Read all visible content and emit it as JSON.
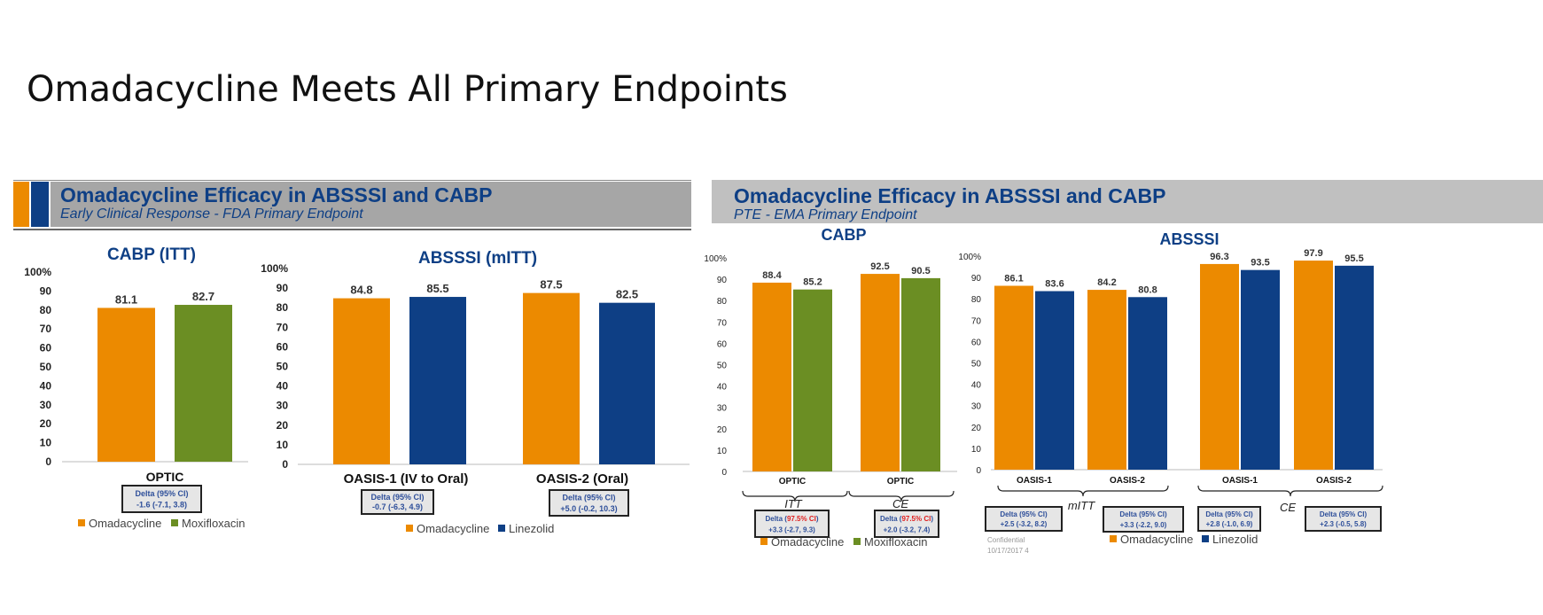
{
  "slide": {
    "title": "Omadacycline Meets All Primary Endpoints"
  },
  "colors": {
    "orange": "#ec8a00",
    "green": "#6b8e23",
    "navy": "#0e3f85",
    "header_gray": "#a6a6a6",
    "header_light": "#c0c0c0"
  },
  "left_panel": {
    "header": {
      "title": "Omadacycline Efficacy in ABSSSI and CABP",
      "subtitle": "Early Clinical Response - FDA Primary Endpoint"
    },
    "legend_cabp": [
      "Omadacycline",
      "Moxifloxacin"
    ],
    "legend_absssi": [
      "Omadacycline",
      "Linezolid"
    ]
  },
  "right_panel": {
    "header": {
      "title": "Omadacycline Efficacy in ABSSSI and CABP",
      "subtitle": "PTE - EMA Primary Endpoint"
    },
    "legend_cabp": [
      "Omadacycline",
      "Moxifloxacin"
    ],
    "legend_absssi": [
      "Omadacycline",
      "Linezolid"
    ],
    "footer": [
      "Confidential",
      "10/17/2017   4"
    ]
  },
  "chart_data": [
    {
      "type": "bar",
      "title": "CABP (ITT)",
      "ylim": [
        0,
        100
      ],
      "yticks": [
        "0",
        "10",
        "20",
        "30",
        "40",
        "50",
        "60",
        "70",
        "80",
        "90",
        "100%"
      ],
      "categories": [
        "OPTIC"
      ],
      "series": [
        {
          "name": "Omadacycline",
          "values": [
            81.1
          ]
        },
        {
          "name": "Moxifloxacin",
          "values": [
            82.7
          ]
        }
      ],
      "data_labels": [
        [
          "81.1"
        ],
        [
          "82.7"
        ]
      ],
      "deltas": [
        {
          "label": "Delta (95% CI)",
          "value": "-1.6 (-7.1, 3.8)"
        }
      ]
    },
    {
      "type": "bar",
      "title": "ABSSSI (mITT)",
      "ylim": [
        0,
        100
      ],
      "yticks": [
        "0",
        "10",
        "20",
        "30",
        "40",
        "50",
        "60",
        "70",
        "80",
        "90",
        "100%"
      ],
      "categories": [
        "OASIS-1 (IV to Oral)",
        "OASIS-2 (Oral)"
      ],
      "series": [
        {
          "name": "Omadacycline",
          "values": [
            84.8,
            87.5
          ]
        },
        {
          "name": "Linezolid",
          "values": [
            85.5,
            82.5
          ]
        }
      ],
      "data_labels": [
        [
          "84.8",
          "87.5"
        ],
        [
          "85.5",
          "82.5"
        ]
      ],
      "deltas": [
        {
          "label": "Delta (95% CI)",
          "value": "-0.7 (-6.3, 4.9)"
        },
        {
          "label": "Delta (95% CI)",
          "value": "+5.0 (-0.2, 10.3)"
        }
      ]
    },
    {
      "type": "bar",
      "title": "CABP",
      "ylim": [
        0,
        100
      ],
      "yticks": [
        "0",
        "10",
        "20",
        "30",
        "40",
        "50",
        "60",
        "70",
        "80",
        "90",
        "100%"
      ],
      "categories": [
        "OPTIC",
        "OPTIC"
      ],
      "groups": [
        "ITT",
        "CE"
      ],
      "series": [
        {
          "name": "Omadacycline",
          "values": [
            88.4,
            92.5
          ]
        },
        {
          "name": "Moxifloxacin",
          "values": [
            85.2,
            90.5
          ]
        }
      ],
      "data_labels": [
        [
          "88.4",
          "92.5"
        ],
        [
          "85.2",
          "90.5"
        ]
      ],
      "deltas": [
        {
          "label_pre": "Delta (",
          "label_red": "97.5% CI",
          "label_post": ")",
          "value": "+3.3 (-2.7, 9.3)"
        },
        {
          "label_pre": "Delta (",
          "label_red": "97.5% CI",
          "label_post": ")",
          "value": "+2.0 (-3.2, 7.4)"
        }
      ]
    },
    {
      "type": "bar",
      "title": "ABSSSI",
      "ylim": [
        0,
        100
      ],
      "yticks": [
        "0",
        "10",
        "20",
        "30",
        "40",
        "50",
        "60",
        "70",
        "80",
        "90",
        "100%"
      ],
      "categories": [
        "OASIS-1",
        "OASIS-2",
        "OASIS-1",
        "OASIS-2"
      ],
      "groups": [
        "mITT",
        "CE"
      ],
      "series": [
        {
          "name": "Omadacycline",
          "values": [
            86.1,
            84.2,
            96.3,
            97.9
          ]
        },
        {
          "name": "Linezolid",
          "values": [
            83.6,
            80.8,
            93.5,
            95.5
          ]
        }
      ],
      "data_labels": [
        [
          "86.1",
          "84.2",
          "96.3",
          "97.9"
        ],
        [
          "83.6",
          "80.8",
          "93.5",
          "95.5"
        ]
      ],
      "deltas": [
        {
          "label": "Delta (95% CI)",
          "value": "+2.5 (-3.2, 8.2)"
        },
        {
          "label": "Delta (95% CI)",
          "value": "+3.3 (-2.2, 9.0)"
        },
        {
          "label": "Delta (95% CI)",
          "value": "+2.8 (-1.0, 6.9)"
        },
        {
          "label": "Delta (95% CI)",
          "value": "+2.3 (-0.5, 5.8)"
        }
      ]
    }
  ]
}
